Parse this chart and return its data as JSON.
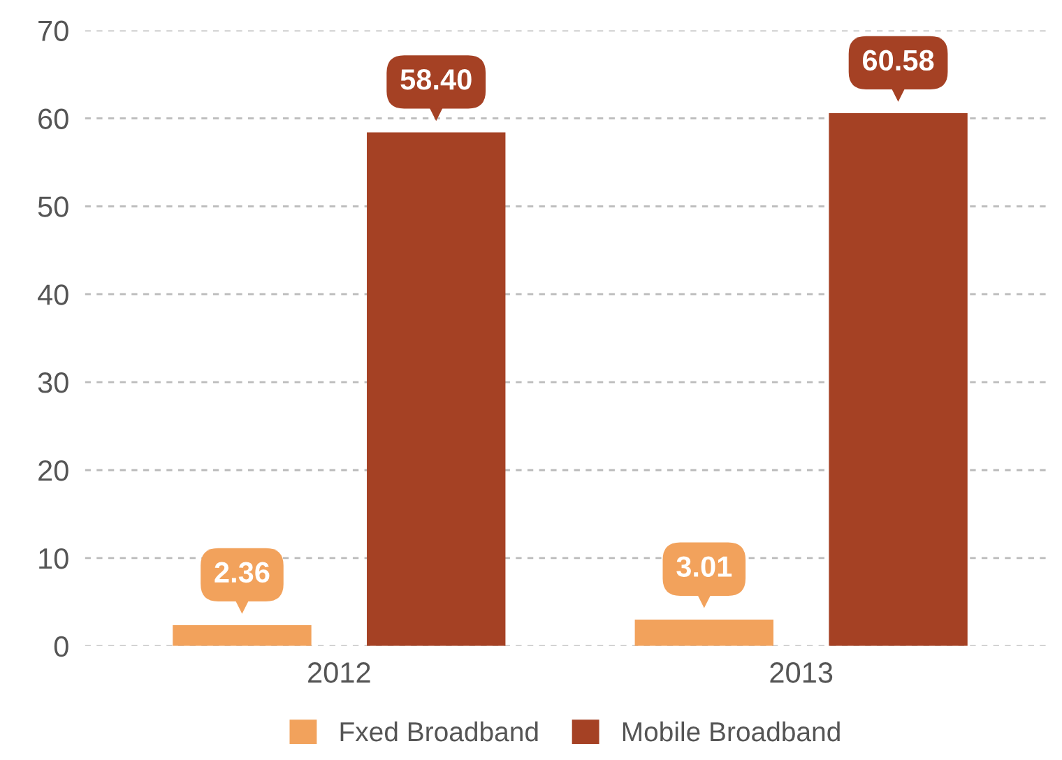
{
  "chart_data": {
    "type": "bar",
    "categories": [
      "2012",
      "2013"
    ],
    "series": [
      {
        "name": "Fxed Broadband",
        "color": "#f2a25c",
        "values": [
          2.36,
          3.01
        ],
        "value_labels": [
          "2.36",
          "3.01"
        ]
      },
      {
        "name": "Mobile Broadband",
        "color": "#a54124",
        "values": [
          58.4,
          60.58
        ],
        "value_labels": [
          "58.40",
          "60.58"
        ]
      }
    ],
    "ylim": [
      0,
      70
    ],
    "yticks": [
      0,
      10,
      20,
      30,
      40,
      50,
      60,
      70
    ],
    "grid": "y",
    "legend": "bottom"
  }
}
